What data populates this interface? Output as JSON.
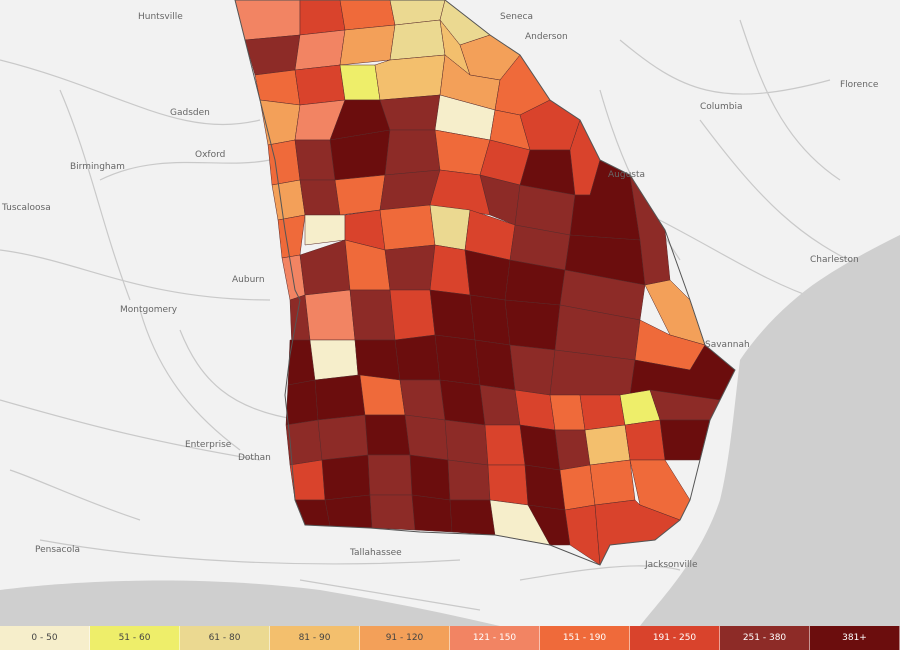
{
  "map": {
    "cities": [
      {
        "name": "Huntsville"
      },
      {
        "name": "Gadsden"
      },
      {
        "name": "Birmingham"
      },
      {
        "name": "Oxford"
      },
      {
        "name": "Tuscaloosa"
      },
      {
        "name": "Auburn"
      },
      {
        "name": "Montgomery"
      },
      {
        "name": "Enterprise"
      },
      {
        "name": "Dothan"
      },
      {
        "name": "Pensacola"
      },
      {
        "name": "Tallahassee"
      },
      {
        "name": "Jacksonville"
      },
      {
        "name": "Columbia"
      },
      {
        "name": "Charleston"
      },
      {
        "name": "Florence"
      },
      {
        "name": "Anderson"
      },
      {
        "name": "Seneca"
      },
      {
        "name": "Augusta"
      },
      {
        "name": "Savannah"
      }
    ]
  },
  "legend": {
    "items": [
      {
        "label": "0 - 50",
        "color": "#f6eecb"
      },
      {
        "label": "51 - 60",
        "color": "#eeee6a"
      },
      {
        "label": "61 - 80",
        "color": "#ebd991"
      },
      {
        "label": "81 - 90",
        "color": "#f3bf6d"
      },
      {
        "label": "91 - 120",
        "color": "#f3a059"
      },
      {
        "label": "121 - 150",
        "color": "#f28463"
      },
      {
        "label": "151 - 190",
        "color": "#ef6a3a"
      },
      {
        "label": "191 - 250",
        "color": "#d9432c"
      },
      {
        "label": "251 - 380",
        "color": "#8d2b27"
      },
      {
        "label": "381+",
        "color": "#6b0d0d"
      }
    ]
  }
}
